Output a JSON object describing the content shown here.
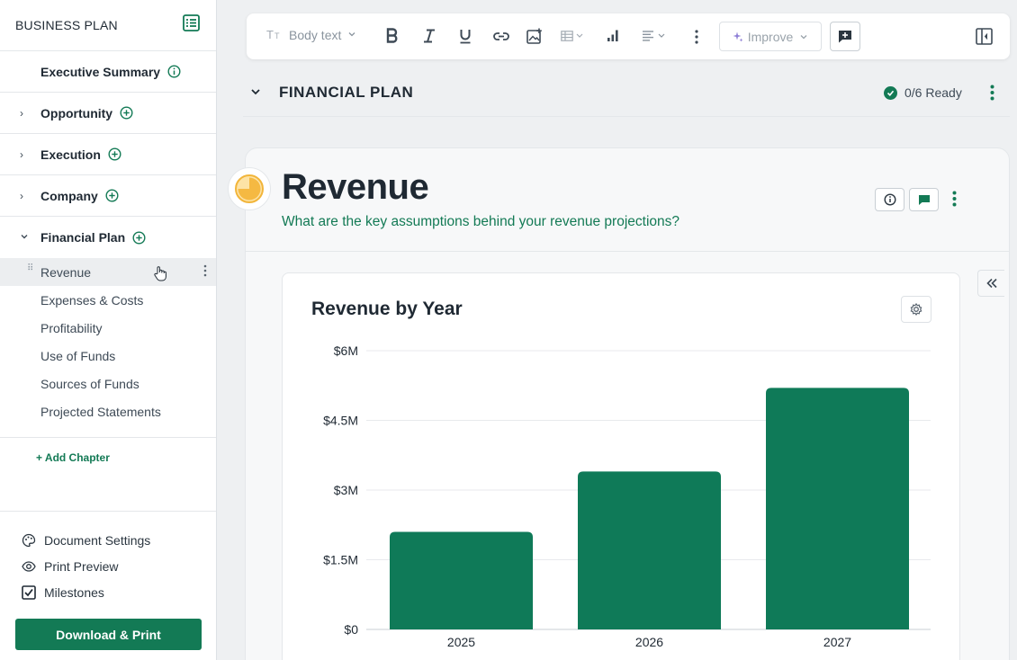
{
  "sidebar": {
    "title": "BUSINESS PLAN",
    "chapters": [
      {
        "label": "Executive Summary",
        "expanded": null,
        "action": "info"
      },
      {
        "label": "Opportunity",
        "expanded": false,
        "action": "add"
      },
      {
        "label": "Execution",
        "expanded": false,
        "action": "add"
      },
      {
        "label": "Company",
        "expanded": false,
        "action": "add"
      },
      {
        "label": "Financial Plan",
        "expanded": true,
        "action": "add"
      }
    ],
    "sections": [
      {
        "label": "Revenue",
        "active": true
      },
      {
        "label": "Expenses & Costs",
        "active": false
      },
      {
        "label": "Profitability",
        "active": false
      },
      {
        "label": "Use of Funds",
        "active": false
      },
      {
        "label": "Sources of Funds",
        "active": false
      },
      {
        "label": "Projected Statements",
        "active": false
      }
    ],
    "add_chapter": "+ Add Chapter",
    "utilities": [
      {
        "label": "Document Settings",
        "icon": "palette-icon"
      },
      {
        "label": "Print Preview",
        "icon": "eye-icon"
      },
      {
        "label": "Milestones",
        "icon": "checkbox-icon"
      }
    ],
    "download_button": "Download & Print"
  },
  "toolbar": {
    "text_style": "Body text",
    "improve_label": "Improve"
  },
  "section": {
    "title": "FINANCIAL PLAN",
    "status": "0/6 Ready"
  },
  "page": {
    "title": "Revenue",
    "subtitle": "What are the key assumptions behind your revenue projections?"
  },
  "colors": {
    "accent": "#137a55",
    "bar": "#0f7a58"
  },
  "chart_data": {
    "type": "bar",
    "title": "Revenue by Year",
    "categories": [
      "2025",
      "2026",
      "2027"
    ],
    "values": [
      2.1,
      3.4,
      5.2
    ],
    "unit": "$M",
    "ylim": [
      0,
      6
    ],
    "yticks": [
      0,
      1.5,
      3,
      4.5,
      6
    ],
    "ytick_labels": [
      "$0",
      "$1.5M",
      "$3M",
      "$4.5M",
      "$6M"
    ],
    "grid": true
  }
}
